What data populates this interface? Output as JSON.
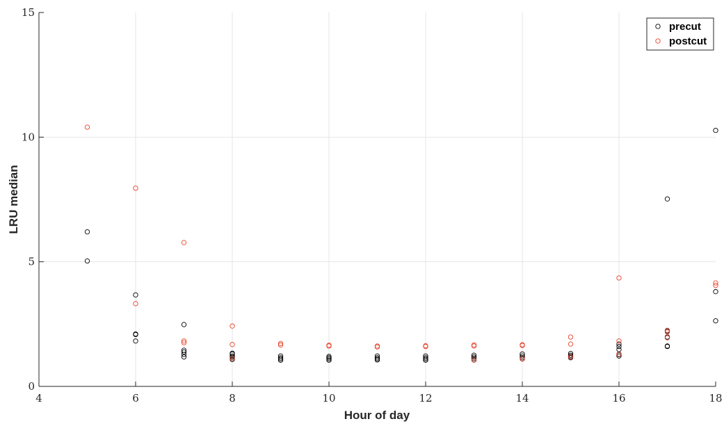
{
  "chart_data": {
    "type": "scatter",
    "title": "",
    "xlabel": "Hour of day",
    "ylabel": "LRU median",
    "xlim": [
      4,
      18
    ],
    "ylim": [
      0,
      15
    ],
    "xticks": [
      4,
      6,
      8,
      10,
      12,
      14,
      16,
      18
    ],
    "yticks": [
      0,
      5,
      10,
      15
    ],
    "grid": true,
    "legend_position": "top-right",
    "marker": "open-circle",
    "series": [
      {
        "name": "precut",
        "color": "#000000",
        "points": [
          [
            5,
            6.2
          ],
          [
            5,
            5.03
          ],
          [
            6,
            3.67
          ],
          [
            6,
            2.1
          ],
          [
            6,
            2.08
          ],
          [
            6,
            1.82
          ],
          [
            7,
            2.48
          ],
          [
            7,
            1.45
          ],
          [
            7,
            1.38
          ],
          [
            7,
            1.28
          ],
          [
            7,
            1.18
          ],
          [
            8,
            1.33
          ],
          [
            8,
            1.3
          ],
          [
            8,
            1.22
          ],
          [
            8,
            1.17
          ],
          [
            8,
            1.12
          ],
          [
            8,
            1.08
          ],
          [
            9,
            1.22
          ],
          [
            9,
            1.15
          ],
          [
            9,
            1.1
          ],
          [
            9,
            1.05
          ],
          [
            10,
            1.2
          ],
          [
            10,
            1.15
          ],
          [
            10,
            1.1
          ],
          [
            10,
            1.05
          ],
          [
            11,
            1.22
          ],
          [
            11,
            1.15
          ],
          [
            11,
            1.1
          ],
          [
            11,
            1.06
          ],
          [
            12,
            1.22
          ],
          [
            12,
            1.15
          ],
          [
            12,
            1.1
          ],
          [
            12,
            1.05
          ],
          [
            13,
            1.25
          ],
          [
            13,
            1.18
          ],
          [
            13,
            1.12
          ],
          [
            13,
            1.06
          ],
          [
            14,
            1.3
          ],
          [
            14,
            1.22
          ],
          [
            14,
            1.15
          ],
          [
            14,
            1.1
          ],
          [
            15,
            1.32
          ],
          [
            15,
            1.25
          ],
          [
            15,
            1.2
          ],
          [
            15,
            1.15
          ],
          [
            16,
            1.7
          ],
          [
            16,
            1.6
          ],
          [
            16,
            1.48
          ],
          [
            16,
            1.28
          ],
          [
            16,
            1.22
          ],
          [
            17,
            7.52
          ],
          [
            17,
            2.22
          ],
          [
            17,
            1.98
          ],
          [
            17,
            1.62
          ],
          [
            17,
            1.6
          ],
          [
            18,
            10.27
          ],
          [
            18,
            3.8
          ],
          [
            18,
            2.63
          ]
        ]
      },
      {
        "name": "postcut",
        "color": "#e8412a",
        "points": [
          [
            5,
            10.4
          ],
          [
            6,
            7.95
          ],
          [
            6,
            3.32
          ],
          [
            7,
            5.77
          ],
          [
            7,
            1.82
          ],
          [
            7,
            1.75
          ],
          [
            8,
            2.42
          ],
          [
            8,
            1.68
          ],
          [
            8,
            1.12
          ],
          [
            9,
            1.72
          ],
          [
            9,
            1.66
          ],
          [
            10,
            1.65
          ],
          [
            10,
            1.62
          ],
          [
            11,
            1.62
          ],
          [
            11,
            1.58
          ],
          [
            12,
            1.63
          ],
          [
            12,
            1.6
          ],
          [
            13,
            1.66
          ],
          [
            13,
            1.62
          ],
          [
            13,
            1.05
          ],
          [
            14,
            1.67
          ],
          [
            14,
            1.64
          ],
          [
            14,
            1.1
          ],
          [
            15,
            1.98
          ],
          [
            15,
            1.7
          ],
          [
            15,
            1.18
          ],
          [
            16,
            4.35
          ],
          [
            16,
            1.82
          ],
          [
            16,
            1.3
          ],
          [
            17,
            2.25
          ],
          [
            17,
            2.18
          ],
          [
            17,
            1.95
          ],
          [
            18,
            4.15
          ],
          [
            18,
            4.05
          ]
        ]
      }
    ]
  }
}
